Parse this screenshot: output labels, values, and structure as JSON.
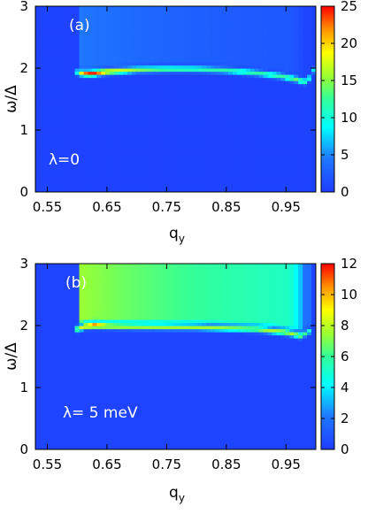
{
  "chart_data": [
    {
      "type": "heatmap",
      "panel_label": "(a)",
      "annotation": "λ=0",
      "xlabel": "q",
      "xlabel_sub": "y",
      "ylabel": "ω/Δ",
      "xlim": [
        0.53,
        1.0
      ],
      "ylim": [
        0,
        3
      ],
      "xticks": [
        0.55,
        0.65,
        0.75,
        0.85,
        0.95
      ],
      "xtick_labels": [
        "0.55",
        "0.65",
        "0.75",
        "0.85",
        "0.95"
      ],
      "yticks": [
        0,
        1,
        2,
        3
      ],
      "ytick_labels": [
        "0",
        "1",
        "2",
        "3"
      ],
      "colorbar": {
        "min": 0,
        "max": 25,
        "ticks": [
          0,
          5,
          10,
          15,
          20,
          25
        ],
        "tick_labels": [
          "0",
          "5",
          "10",
          "15",
          "20",
          "25"
        ]
      },
      "background_value": 0.5,
      "continuum": {
        "q_start": 0.6,
        "q_end": 0.99,
        "omega_top": 3.0,
        "level_near_threshold": 4.5,
        "level_far": 1.5,
        "decay_q": 0.22
      },
      "resonance_curve": [
        {
          "q": 0.6,
          "omega": 1.94,
          "intensity": 10
        },
        {
          "q": 0.61,
          "omega": 1.92,
          "intensity": 22
        },
        {
          "q": 0.625,
          "omega": 1.92,
          "intensity": 25
        },
        {
          "q": 0.65,
          "omega": 1.95,
          "intensity": 20
        },
        {
          "q": 0.7,
          "omega": 1.98,
          "intensity": 15
        },
        {
          "q": 0.75,
          "omega": 1.99,
          "intensity": 13
        },
        {
          "q": 0.8,
          "omega": 1.99,
          "intensity": 12
        },
        {
          "q": 0.85,
          "omega": 1.97,
          "intensity": 12
        },
        {
          "q": 0.9,
          "omega": 1.93,
          "intensity": 12
        },
        {
          "q": 0.94,
          "omega": 1.88,
          "intensity": 12
        },
        {
          "q": 0.97,
          "omega": 1.82,
          "intensity": 14
        },
        {
          "q": 0.98,
          "omega": 1.78,
          "intensity": 12
        },
        {
          "q": 0.99,
          "omega": 1.85,
          "intensity": 10
        },
        {
          "q": 0.997,
          "omega": 1.98,
          "intensity": 8
        }
      ]
    },
    {
      "type": "heatmap",
      "panel_label": "(b)",
      "annotation": "λ= 5 meV",
      "xlabel": "q",
      "xlabel_sub": "y",
      "ylabel": "ω/Δ",
      "xlim": [
        0.53,
        1.0
      ],
      "ylim": [
        0,
        3
      ],
      "xticks": [
        0.55,
        0.65,
        0.75,
        0.85,
        0.95
      ],
      "xtick_labels": [
        "0.55",
        "0.65",
        "0.75",
        "0.85",
        "0.95"
      ],
      "yticks": [
        0,
        1,
        2,
        3
      ],
      "ytick_labels": [
        "0",
        "1",
        "2",
        "3"
      ],
      "colorbar": {
        "min": 0,
        "max": 12,
        "ticks": [
          0,
          2,
          4,
          6,
          8,
          10,
          12
        ],
        "tick_labels": [
          "0",
          "2",
          "4",
          "6",
          "8",
          "10",
          "12"
        ]
      },
      "background_value": 0.3,
      "continuum": {
        "q_start": 0.6,
        "q_end": 0.99,
        "omega_top": 3.0,
        "level_near_threshold": 7.5,
        "level_far": 4.0,
        "decay_q": 0.35
      },
      "resonance_curve": [
        {
          "q": 0.6,
          "omega": 1.95,
          "intensity": 7
        },
        {
          "q": 0.615,
          "omega": 2.0,
          "intensity": 10
        },
        {
          "q": 0.63,
          "omega": 2.01,
          "intensity": 11.5
        },
        {
          "q": 0.65,
          "omega": 2.0,
          "intensity": 9
        },
        {
          "q": 0.7,
          "omega": 1.99,
          "intensity": 8
        },
        {
          "q": 0.8,
          "omega": 1.98,
          "intensity": 7.5
        },
        {
          "q": 0.9,
          "omega": 1.95,
          "intensity": 7.5
        },
        {
          "q": 0.95,
          "omega": 1.9,
          "intensity": 8
        },
        {
          "q": 0.975,
          "omega": 1.84,
          "intensity": 7
        },
        {
          "q": 0.99,
          "omega": 1.92,
          "intensity": 5
        }
      ]
    }
  ]
}
